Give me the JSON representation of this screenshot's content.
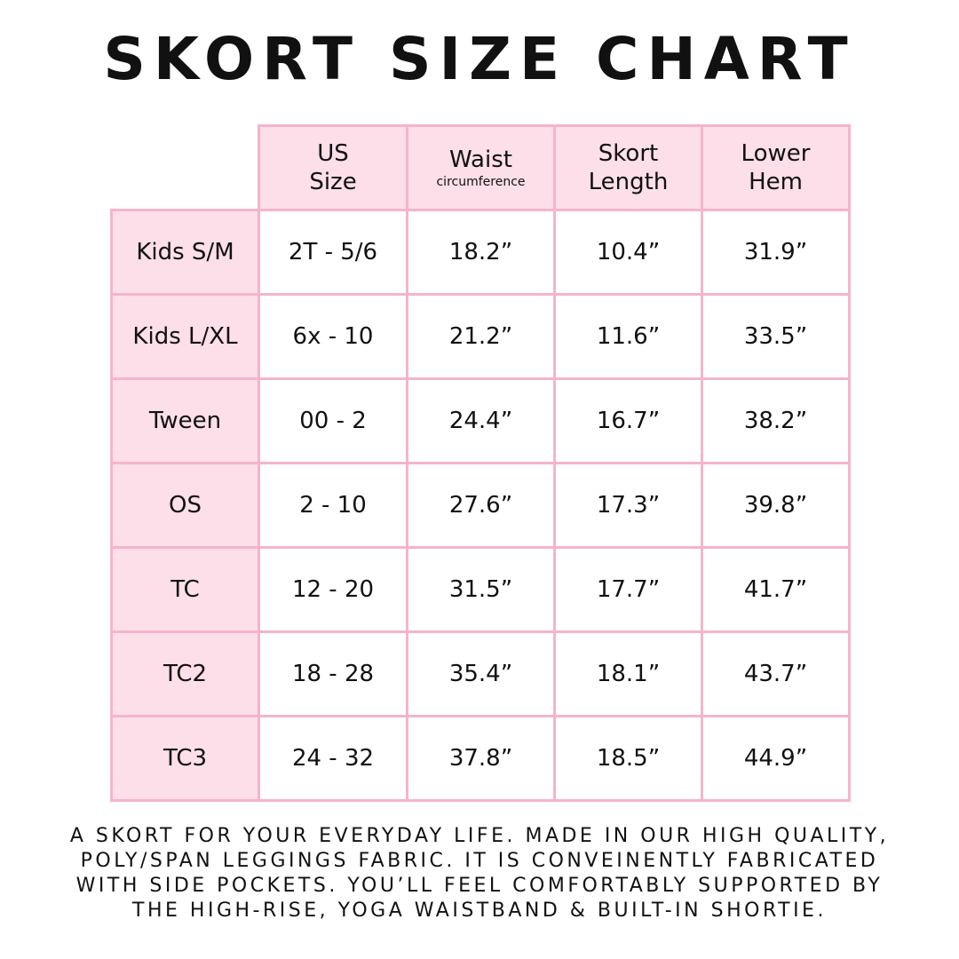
{
  "title": "SKORT SIZE CHART",
  "table": {
    "columns": [
      {
        "lines": [
          "US",
          "Size"
        ]
      },
      {
        "lines": [
          "Waist"
        ],
        "subtitle": "circumference"
      },
      {
        "lines": [
          "Skort",
          "Length"
        ]
      },
      {
        "lines": [
          "Lower",
          "Hem"
        ]
      }
    ],
    "rows": [
      [
        "Kids S/M",
        "2T - 5/6",
        "18.2”",
        "10.4”",
        "31.9”"
      ],
      [
        "Kids L/XL",
        "6x - 10",
        "21.2”",
        "11.6”",
        "33.5”"
      ],
      [
        "Tween",
        "00 - 2",
        "24.4”",
        "16.7”",
        "38.2”"
      ],
      [
        "OS",
        "2 - 10",
        "27.6”",
        "17.3”",
        "39.8”"
      ],
      [
        "TC",
        "12 - 20",
        "31.5”",
        "17.7”",
        "41.7”"
      ],
      [
        "TC2",
        "18 - 28",
        "35.4”",
        "18.1”",
        "43.7”"
      ],
      [
        "TC3",
        "24 - 32",
        "37.8”",
        "18.5”",
        "44.9”"
      ]
    ]
  },
  "description": [
    "A SKORT FOR YOUR EVERYDAY LIFE. MADE IN OUR HIGH QUALITY,",
    "POLY/SPAN LEGGINGS FABRIC. IT IS CONVEINENTLY FABRICATED",
    "WITH SIDE POCKETS. YOU’LL FEEL COMFORTABLY SUPPORTED BY",
    "THE HIGH-RISE, YOGA WAISTBAND & BUILT-IN SHORTIE."
  ]
}
